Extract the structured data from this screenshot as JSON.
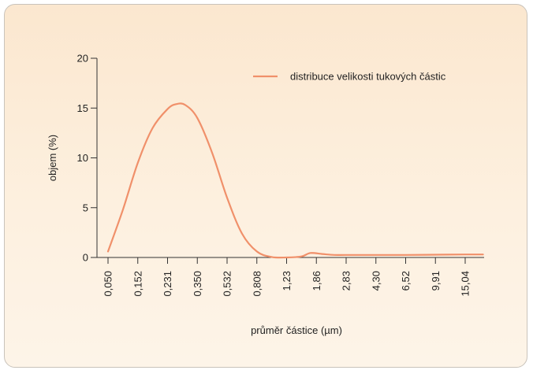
{
  "chart_data": {
    "type": "line",
    "title": "",
    "xlabel": "průměr částice (µm)",
    "ylabel": "objem (%)",
    "ylim": [
      0,
      20
    ],
    "yticks": [
      "0",
      "5",
      "10",
      "15",
      "20"
    ],
    "categories": [
      "0,050",
      "0,152",
      "0,231",
      "0,350",
      "0,532",
      "0,808",
      "1,23",
      "1,86",
      "2,83",
      "4,30",
      "6,52",
      "9,91",
      "15,04"
    ],
    "legend_position": "top-right",
    "colors": {
      "series": "#f0906a",
      "axis": "#333333",
      "background": "#fcecd9"
    },
    "series": [
      {
        "name": "distribuce velikosti tukových částic",
        "points": [
          [
            0,
            0.6
          ],
          [
            0.5,
            4.8
          ],
          [
            1,
            9.5
          ],
          [
            1.5,
            13.0
          ],
          [
            2,
            14.9
          ],
          [
            2.3,
            15.4
          ],
          [
            2.6,
            15.3
          ],
          [
            3,
            14.0
          ],
          [
            3.5,
            10.5
          ],
          [
            4,
            6.0
          ],
          [
            4.5,
            2.4
          ],
          [
            5,
            0.6
          ],
          [
            5.5,
            0.05
          ],
          [
            6,
            0.0
          ],
          [
            6.5,
            0.1
          ],
          [
            6.8,
            0.45
          ],
          [
            7.2,
            0.35
          ],
          [
            7.6,
            0.25
          ],
          [
            8,
            0.25
          ],
          [
            9,
            0.25
          ],
          [
            10,
            0.25
          ],
          [
            11,
            0.28
          ],
          [
            12,
            0.3
          ],
          [
            12.6,
            0.3
          ]
        ]
      }
    ]
  }
}
